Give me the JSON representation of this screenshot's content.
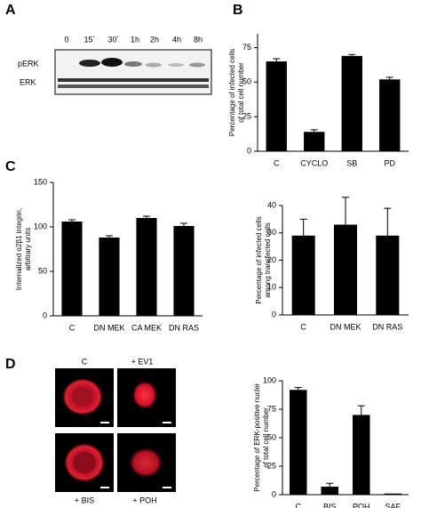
{
  "panel_labels": [
    "A",
    "B",
    "C",
    "D"
  ],
  "blot": {
    "timepoints": [
      "0",
      "15´",
      "30´",
      "1h",
      "2h",
      "4h",
      "8h"
    ],
    "rows": [
      "pERK",
      "ERK"
    ]
  },
  "micrographs": [
    "C",
    "+ EV1",
    "+ BIS",
    "+ POH"
  ],
  "chart_data": [
    {
      "type": "bar",
      "ylabel": [
        "Percentage of infected cells",
        "of total cell number"
      ],
      "categories": [
        "C",
        "CYCLO",
        "SB",
        "PD"
      ],
      "values": [
        65,
        14,
        69,
        52
      ],
      "errors": [
        2,
        1.5,
        1,
        1.5
      ],
      "color": "#000000",
      "ylim": [
        0,
        85
      ],
      "yticks": [
        0,
        25,
        50,
        75
      ]
    },
    {
      "type": "bar",
      "ylabel": [
        "Internalized α2β1 integrin,",
        "arbitrary units"
      ],
      "categories": [
        "C",
        "DN MEK",
        "CA MEK",
        "DN RAS"
      ],
      "values": [
        106,
        88,
        110,
        101
      ],
      "errors": [
        2,
        2,
        2,
        3
      ],
      "color": "#000000",
      "ylim": [
        0,
        150
      ],
      "yticks": [
        0,
        50,
        100,
        150
      ]
    },
    {
      "type": "bar",
      "ylabel": [
        "Percentage of infected cells",
        "among transfected cells"
      ],
      "categories": [
        "C",
        "DN MEK",
        "DN RAS"
      ],
      "values": [
        29,
        33,
        29
      ],
      "errors": [
        6,
        10,
        10
      ],
      "color": "#000000",
      "ylim": [
        0,
        40
      ],
      "yticks": [
        0,
        10,
        20,
        30,
        40
      ]
    },
    {
      "type": "bar",
      "ylabel": [
        "Percentage of ERK-positive nuclei",
        "of total cell number"
      ],
      "categories": [
        "C",
        "BIS",
        "POH",
        "SAF"
      ],
      "values": [
        92,
        7,
        70,
        1
      ],
      "errors": [
        2,
        3,
        8,
        null
      ],
      "color": "#000000",
      "ylim": [
        0,
        100
      ],
      "yticks": [
        0,
        25,
        50,
        75,
        100
      ]
    }
  ]
}
